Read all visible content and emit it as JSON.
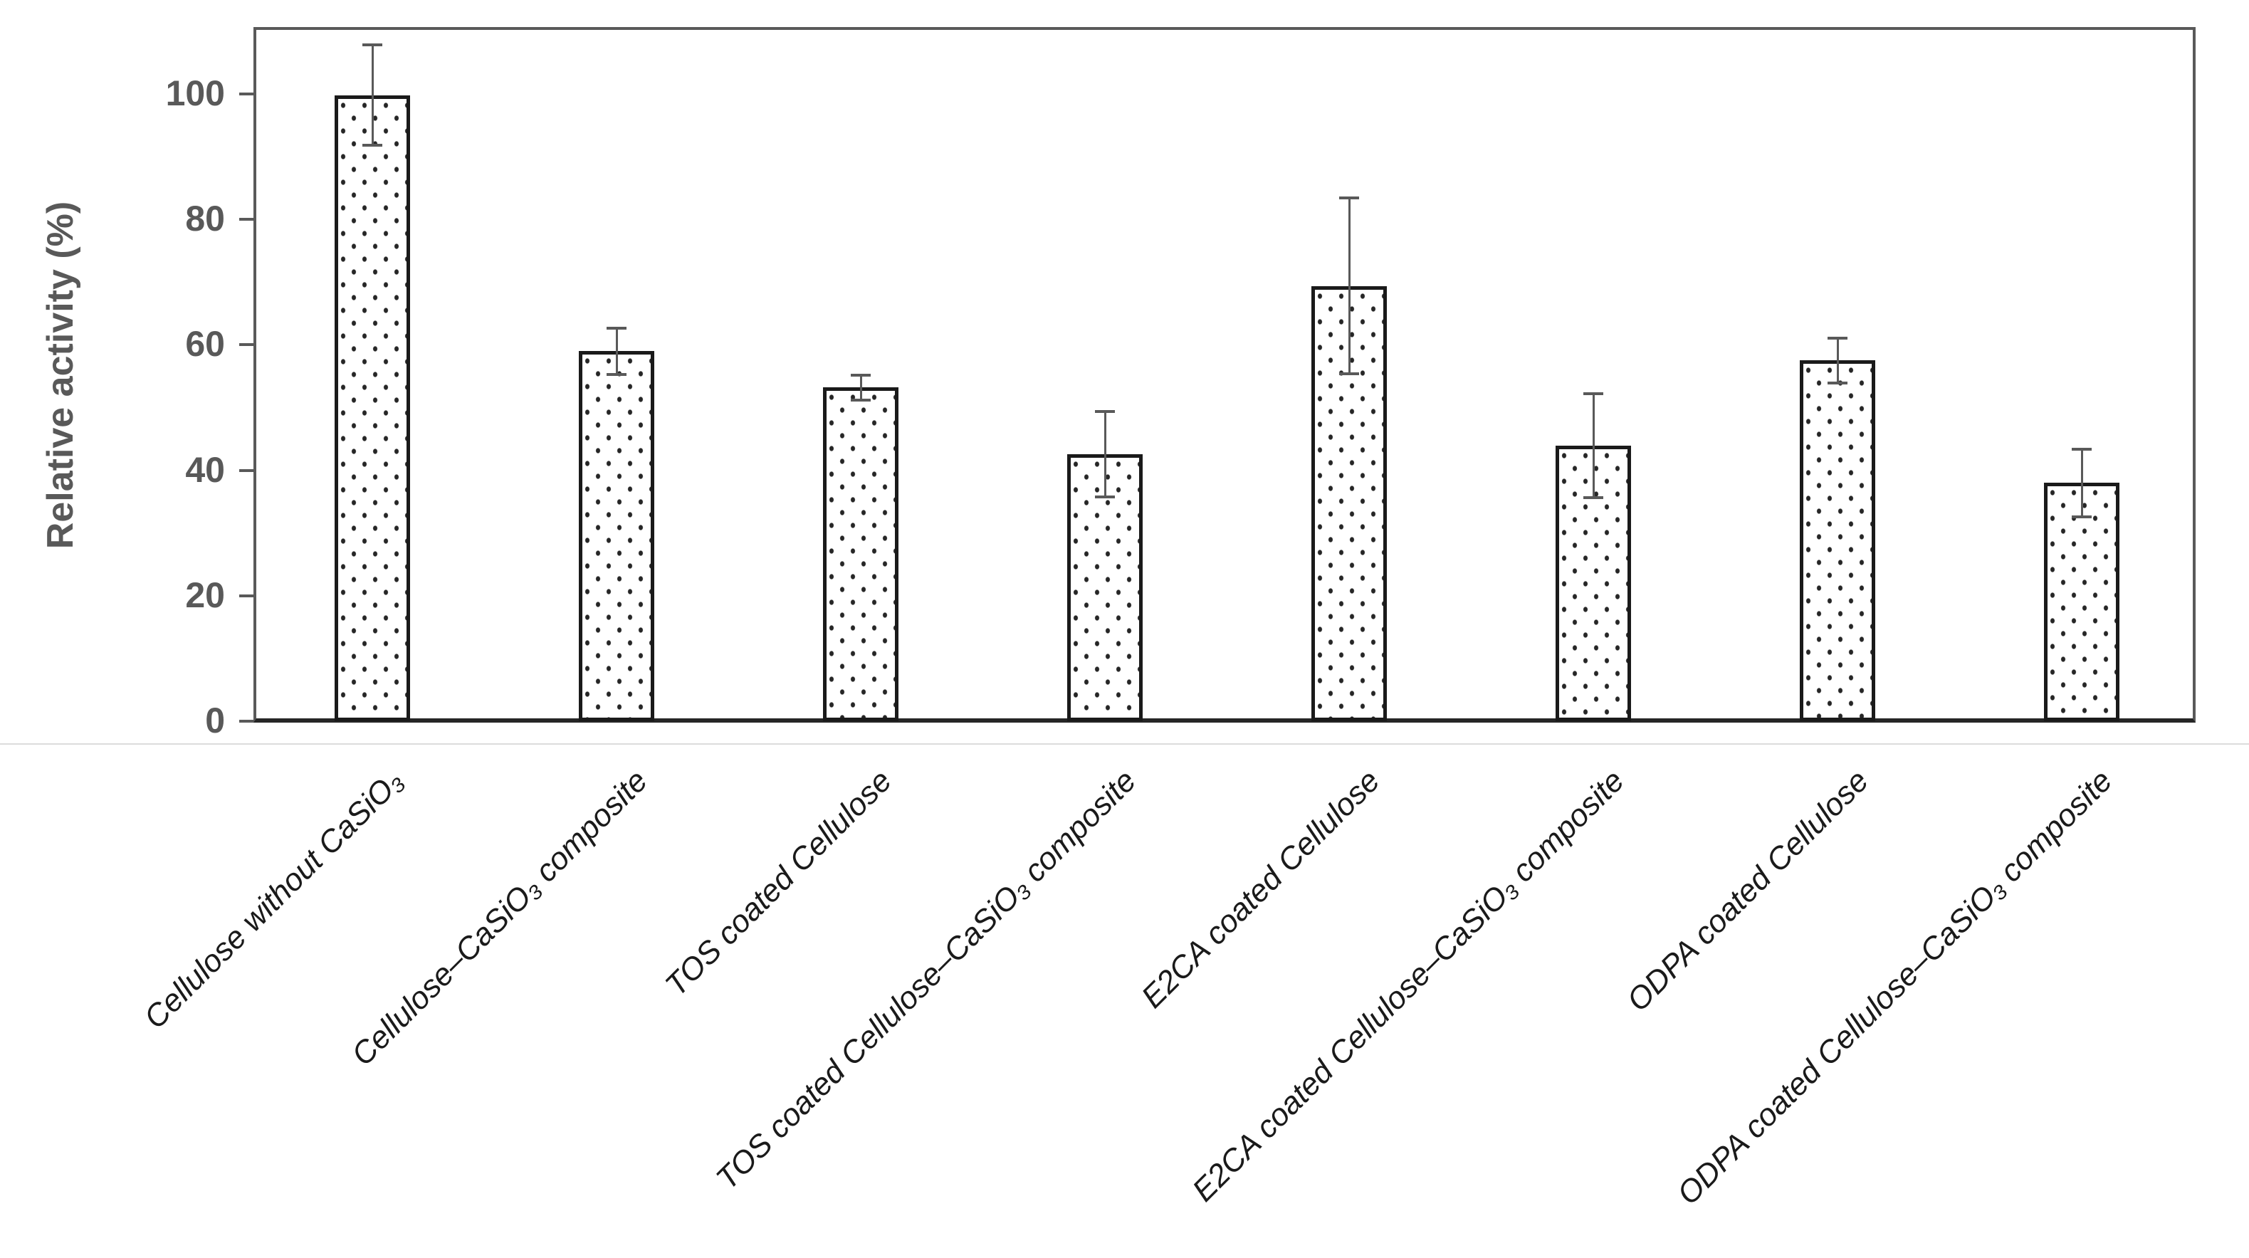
{
  "y_axis": {
    "title": "Relative activity (%)",
    "tick_labels": [
      "0",
      "20",
      "40",
      "60",
      "80",
      "100"
    ],
    "tick_values": [
      0,
      20,
      40,
      60,
      80,
      100
    ]
  },
  "chart_data": {
    "type": "bar",
    "title": "",
    "xlabel": "",
    "ylabel": "Relative activity (%)",
    "ylim": [
      0,
      110
    ],
    "grid": false,
    "legend": "none",
    "bar_fill_pattern": "polka-dot",
    "bar_border_color": "#1a1a1a",
    "dot_color": "#262626",
    "error_bar_color": "#595959",
    "axis_color": "#595959",
    "baseline_color": "#262626",
    "category_label_color": "#1a1a1a",
    "categories": [
      "Cellulose without CaSiO₃",
      "Cellulose–CaSiO₃  composite",
      "TOS coated Cellulose",
      "TOS coated Cellulose–CaSiO₃  composite",
      "E2CA coated Cellulose",
      "E2CA coated Cellulose–CaSiO₃  composite",
      "ODPA coated Cellulose",
      "ODPA coated Cellulose–CaSiO₃  composite"
    ],
    "values": [
      99.8,
      59.0,
      53.2,
      42.6,
      69.4,
      43.9,
      57.5,
      38.0
    ],
    "error_bars": [
      8.0,
      3.7,
      2.0,
      6.8,
      14.0,
      8.3,
      3.6,
      5.4
    ]
  }
}
